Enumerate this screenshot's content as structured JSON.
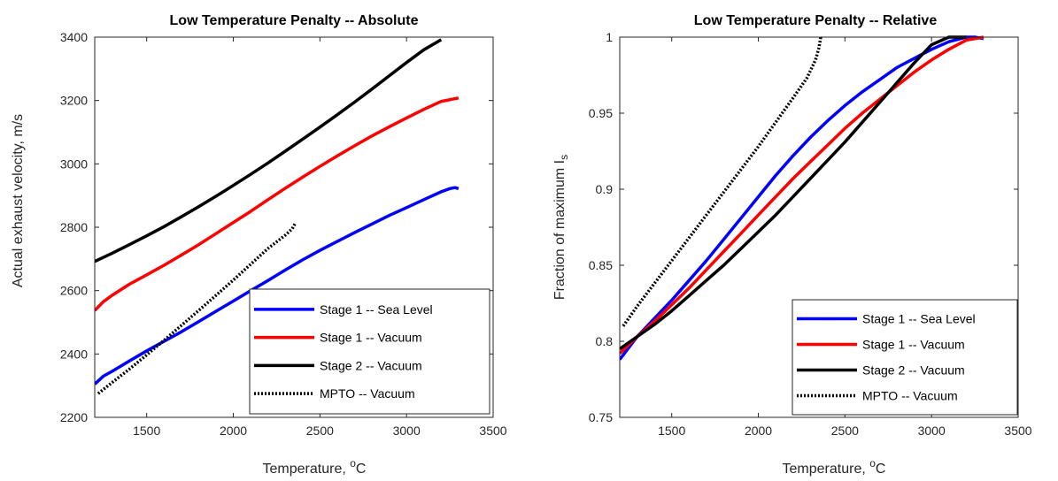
{
  "chart_data": [
    {
      "type": "line",
      "title": "Low Temperature Penalty -- Absolute",
      "xlabel": "Temperature, ",
      "xlabel_unit": "C",
      "xlabel_sup": "o",
      "ylabel": "Actual exhaust velocity, m/s",
      "xlim": [
        1200,
        3500
      ],
      "ylim": [
        2200,
        3400
      ],
      "xticks": [
        1500,
        2000,
        2500,
        3000,
        3500
      ],
      "yticks": [
        2200,
        2400,
        2600,
        2800,
        3000,
        3200,
        3400
      ],
      "legend_position": "bottom-right",
      "series": [
        {
          "name": "Stage 1 -- Sea Level",
          "color": "#0000ff",
          "style": "solid",
          "x": [
            1200,
            1250,
            1300,
            1400,
            1500,
            1600,
            1700,
            1800,
            1900,
            2000,
            2100,
            2200,
            2300,
            2400,
            2500,
            2600,
            2700,
            2800,
            2900,
            3000,
            3100,
            3200,
            3250,
            3280,
            3300
          ],
          "y": [
            2305,
            2330,
            2345,
            2378,
            2410,
            2440,
            2470,
            2502,
            2535,
            2567,
            2600,
            2632,
            2665,
            2697,
            2727,
            2755,
            2783,
            2810,
            2837,
            2862,
            2887,
            2912,
            2922,
            2925,
            2922
          ]
        },
        {
          "name": "Stage 1 -- Vacuum",
          "color": "#ff0000",
          "style": "solid",
          "x": [
            1200,
            1250,
            1300,
            1400,
            1500,
            1600,
            1700,
            1800,
            1900,
            2000,
            2100,
            2200,
            2300,
            2400,
            2500,
            2600,
            2700,
            2800,
            2900,
            3000,
            3100,
            3200,
            3300
          ],
          "y": [
            2537,
            2565,
            2585,
            2620,
            2650,
            2680,
            2712,
            2745,
            2780,
            2815,
            2850,
            2887,
            2923,
            2958,
            2992,
            3025,
            3057,
            3088,
            3117,
            3145,
            3172,
            3197,
            3208
          ]
        },
        {
          "name": "Stage 2 -- Vacuum",
          "color": "#000000",
          "style": "solid",
          "x": [
            1200,
            1300,
            1400,
            1500,
            1600,
            1700,
            1800,
            1900,
            2000,
            2100,
            2200,
            2300,
            2400,
            2500,
            2600,
            2700,
            2800,
            2900,
            3000,
            3100,
            3200
          ],
          "y": [
            2692,
            2718,
            2745,
            2773,
            2802,
            2833,
            2865,
            2898,
            2932,
            2967,
            3003,
            3040,
            3078,
            3116,
            3155,
            3195,
            3236,
            3278,
            3320,
            3360,
            3392
          ]
        },
        {
          "name": "MPTO -- Vacuum",
          "color": "#000000",
          "style": "dotted",
          "x": [
            1220,
            1300,
            1400,
            1500,
            1600,
            1700,
            1800,
            1900,
            2000,
            2100,
            2200,
            2300,
            2340,
            2360
          ],
          "y": [
            2275,
            2310,
            2352,
            2397,
            2443,
            2490,
            2537,
            2585,
            2633,
            2683,
            2733,
            2775,
            2795,
            2815
          ]
        }
      ]
    },
    {
      "type": "line",
      "title": "Low Temperature Penalty -- Relative",
      "xlabel": "Temperature, ",
      "xlabel_unit": "C",
      "xlabel_sup": "o",
      "ylabel": "Fraction of maximum I",
      "ylabel_sub": "s",
      "xlim": [
        1200,
        3500
      ],
      "ylim": [
        0.75,
        1.0
      ],
      "xticks": [
        1500,
        2000,
        2500,
        3000,
        3500
      ],
      "yticks": [
        0.75,
        0.8,
        0.85,
        0.9,
        0.95,
        1.0
      ],
      "ytick_labels": [
        "0.75",
        "0.8",
        "0.85",
        "0.9",
        "0.95",
        "1"
      ],
      "legend_position": "bottom-right",
      "series": [
        {
          "name": "Stage 1 -- Sea Level",
          "color": "#0000ff",
          "style": "solid",
          "x": [
            1200,
            1300,
            1400,
            1500,
            1600,
            1700,
            1800,
            1900,
            2000,
            2100,
            2200,
            2300,
            2400,
            2500,
            2600,
            2700,
            2800,
            2900,
            3000,
            3100,
            3200,
            3250,
            3300
          ],
          "y": [
            0.788,
            0.803,
            0.815,
            0.827,
            0.84,
            0.853,
            0.867,
            0.881,
            0.895,
            0.909,
            0.922,
            0.934,
            0.945,
            0.955,
            0.964,
            0.972,
            0.98,
            0.986,
            0.992,
            0.997,
            1.0,
            1.0,
            0.999
          ]
        },
        {
          "name": "Stage 1 -- Vacuum",
          "color": "#ff0000",
          "style": "solid",
          "x": [
            1200,
            1300,
            1400,
            1500,
            1600,
            1700,
            1800,
            1900,
            2000,
            2100,
            2200,
            2300,
            2400,
            2500,
            2600,
            2700,
            2800,
            2900,
            3000,
            3100,
            3200,
            3300
          ],
          "y": [
            0.792,
            0.803,
            0.813,
            0.824,
            0.835,
            0.847,
            0.859,
            0.871,
            0.883,
            0.895,
            0.907,
            0.918,
            0.929,
            0.94,
            0.95,
            0.959,
            0.968,
            0.977,
            0.985,
            0.992,
            0.998,
            1.0
          ]
        },
        {
          "name": "Stage 2 -- Vacuum",
          "color": "#000000",
          "style": "solid",
          "x": [
            1200,
            1300,
            1400,
            1500,
            1600,
            1700,
            1800,
            1900,
            2000,
            2100,
            2200,
            2300,
            2400,
            2500,
            2600,
            2700,
            2800,
            2900,
            3000,
            3100,
            3200
          ],
          "y": [
            0.795,
            0.803,
            0.811,
            0.82,
            0.83,
            0.84,
            0.85,
            0.861,
            0.872,
            0.883,
            0.895,
            0.907,
            0.919,
            0.931,
            0.944,
            0.957,
            0.97,
            0.983,
            0.995,
            1.0,
            1.0
          ]
        },
        {
          "name": "MPTO -- Vacuum",
          "color": "#000000",
          "style": "dotted",
          "x": [
            1220,
            1300,
            1400,
            1500,
            1600,
            1700,
            1800,
            1900,
            2000,
            2100,
            2200,
            2280,
            2330,
            2350,
            2360
          ],
          "y": [
            0.81,
            0.823,
            0.838,
            0.853,
            0.868,
            0.883,
            0.898,
            0.913,
            0.928,
            0.944,
            0.96,
            0.973,
            0.985,
            0.993,
            1.0
          ]
        }
      ]
    }
  ]
}
